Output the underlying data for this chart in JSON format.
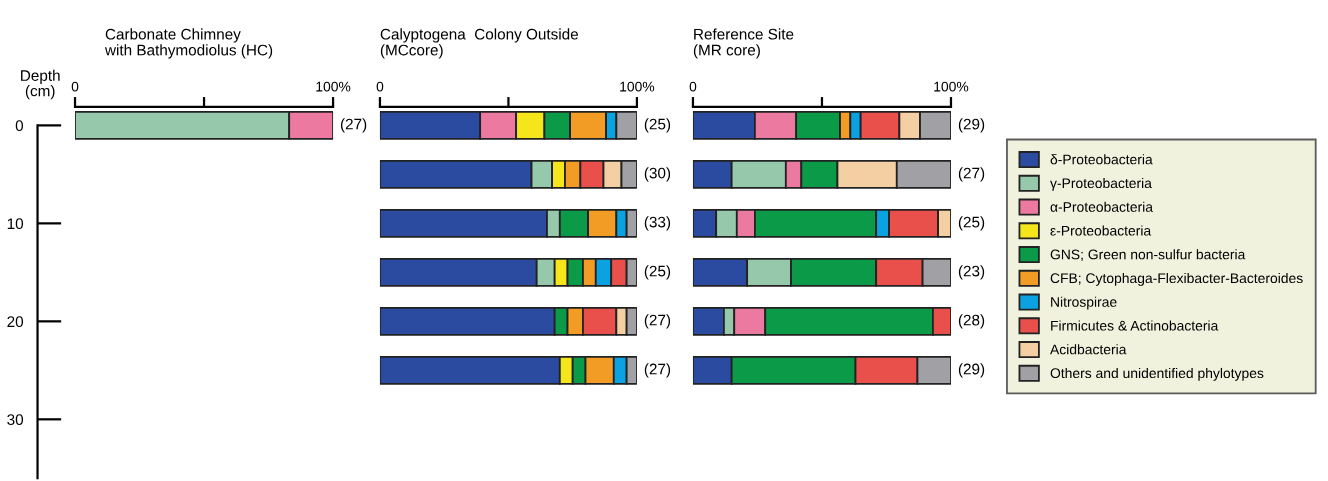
{
  "chart_data": [
    {
      "type": "bar",
      "orientation": "horizontal",
      "stacked": true,
      "title": "Carbonate Chimney\nwith Bathymodiolus (HC)",
      "ylabel": "Depth\n(cm)",
      "x": [
        0
      ],
      "xlim": [
        0,
        100
      ],
      "xticks": [
        {
          "value": 0,
          "label": "0"
        },
        {
          "value": 50,
          "label": null
        },
        {
          "value": 100,
          "label": "100%"
        }
      ],
      "ylim": [
        36,
        -1.9
      ],
      "yticks": [
        0,
        10,
        20,
        30
      ],
      "legend": false,
      "grid": false,
      "series": [
        {
          "color": "#96c8ac",
          "values": [
            83
          ]
        },
        {
          "color": "#ec7aa0",
          "values": [
            17
          ]
        }
      ],
      "annotations": [
        "(27)"
      ]
    },
    {
      "type": "bar",
      "orientation": "horizontal",
      "stacked": true,
      "title": "Calyptogena  Colony Outside\n(MCcore)",
      "x": [
        0,
        5,
        10,
        15,
        20,
        25
      ],
      "xlim": [
        0,
        100
      ],
      "xticks": [
        {
          "value": 0,
          "label": "0"
        },
        {
          "value": 50,
          "label": null
        },
        {
          "value": 100,
          "label": "100%"
        }
      ],
      "tick_labels": "x",
      "legend": false,
      "grid": false,
      "series": [
        {
          "color": "#2b4ba0",
          "values": [
            39,
            59,
            65,
            61,
            68,
            70
          ]
        },
        {
          "color": "#96c8ac",
          "values": [
            null,
            8,
            5,
            7,
            null,
            null
          ]
        },
        {
          "color": "#ec7aa0",
          "values": [
            14,
            null,
            null,
            null,
            null,
            null
          ]
        },
        {
          "color": "#f5e61c",
          "values": [
            11,
            5,
            null,
            5,
            null,
            5
          ]
        },
        {
          "color": "#0a9a48",
          "values": [
            10,
            null,
            11,
            6,
            5,
            5
          ]
        },
        {
          "color": "#f39c25",
          "values": [
            14,
            6,
            11,
            5,
            6,
            11
          ]
        },
        {
          "color": "#0aa2e0",
          "values": [
            4,
            null,
            4,
            6,
            null,
            5
          ]
        },
        {
          "color": "#e9504b",
          "values": [
            null,
            9,
            null,
            6,
            13,
            null
          ]
        },
        {
          "color": "#f4cfa3",
          "values": [
            null,
            7,
            null,
            null,
            4,
            null
          ]
        },
        {
          "color": "#a0a0a5",
          "values": [
            8,
            6,
            4,
            4,
            4,
            4
          ]
        }
      ],
      "annotations": [
        "(25)",
        "(30)",
        "(33)",
        "(25)",
        "(27)",
        "(27)"
      ]
    },
    {
      "type": "bar",
      "orientation": "horizontal",
      "stacked": true,
      "title": "Reference Site\n(MR core)",
      "x": [
        0,
        5,
        10,
        15,
        20,
        25
      ],
      "xlim": [
        0,
        100
      ],
      "xticks": [
        {
          "value": 0,
          "label": "0"
        },
        {
          "value": 50,
          "label": null
        },
        {
          "value": 100,
          "label": "100%"
        }
      ],
      "tick_labels": "x",
      "legend": "right",
      "grid": false,
      "series": [
        {
          "name": "δ-Proteobacteria",
          "color": "#2b4ba0",
          "values": [
            24,
            15,
            9,
            21,
            12,
            15
          ]
        },
        {
          "name": "γ-Proteobacteria",
          "color": "#96c8ac",
          "values": [
            null,
            21,
            8,
            17,
            4,
            null
          ]
        },
        {
          "name": "α-Proteobacteria",
          "color": "#ec7aa0",
          "values": [
            16,
            6,
            7,
            null,
            12,
            null
          ]
        },
        {
          "name": "ε-Proteobacteria",
          "color": "#f5e61c",
          "values": [
            null,
            null,
            null,
            null,
            null,
            null
          ]
        },
        {
          "name": "GNS; Green non-sulfur bacteria",
          "color": "#0a9a48",
          "values": [
            17,
            14,
            47,
            33,
            65,
            48
          ]
        },
        {
          "name": "CFB; Cytophaga-Flexibacter-Bacteroides",
          "color": "#f39c25",
          "values": [
            4,
            null,
            null,
            null,
            null,
            null
          ]
        },
        {
          "name": "Nitrospirae",
          "color": "#0aa2e0",
          "values": [
            4,
            null,
            5,
            null,
            null,
            null
          ]
        },
        {
          "name": "Firmicutes & Actinobacteria",
          "color": "#e9504b",
          "values": [
            15,
            null,
            19,
            18,
            7,
            24
          ]
        },
        {
          "name": "Acidbacteria",
          "color": "#f4cfa3",
          "values": [
            8,
            23,
            5,
            null,
            null,
            null
          ]
        },
        {
          "name": "Others and unidentified phylotypes",
          "color": "#a0a0a5",
          "values": [
            12,
            21,
            null,
            11,
            null,
            13
          ]
        }
      ],
      "annotations": [
        "(29)",
        "(27)",
        "(25)",
        "(23)",
        "(28)",
        "(29)"
      ]
    }
  ]
}
